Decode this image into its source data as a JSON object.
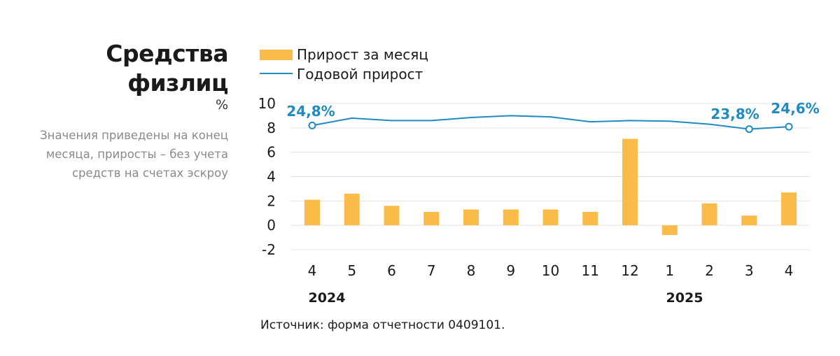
{
  "header": {
    "title_line1": "Средства",
    "title_line2": "физлиц",
    "unit": "%",
    "note_line1": "Значения приведены на конец",
    "note_line2": "месяца, приросты – без учета",
    "note_line3": "средств на счетах эскроу"
  },
  "source": "Источник: форма отчетности 0409101.",
  "colors": {
    "bar": "#fbbb48",
    "line": "#1f8bc2",
    "grid": "#e3e3e3"
  },
  "chart_data": {
    "type": "bar",
    "categories": [
      "4",
      "5",
      "6",
      "7",
      "8",
      "9",
      "10",
      "11",
      "12",
      "1",
      "2",
      "3",
      "4"
    ],
    "year_labels": [
      "2024",
      "2025"
    ],
    "series": [
      {
        "name": "Прирост за месяц",
        "type": "bar",
        "values": [
          2.1,
          2.6,
          1.6,
          1.1,
          1.3,
          1.3,
          1.3,
          1.1,
          7.1,
          -0.8,
          1.8,
          0.8,
          2.7
        ]
      },
      {
        "name": "Годовой прирост",
        "type": "line",
        "values": [
          8.2,
          8.8,
          8.6,
          8.6,
          8.85,
          9.0,
          8.9,
          8.5,
          8.6,
          8.55,
          8.3,
          7.9,
          8.1
        ]
      }
    ],
    "annotations": [
      "24,8%",
      "23,8%",
      "24,6%"
    ],
    "y_ticks": [
      10,
      8,
      6,
      4,
      2,
      0,
      -2
    ],
    "ylim": [
      -2,
      10
    ],
    "grid": true,
    "legend": "top-left"
  }
}
